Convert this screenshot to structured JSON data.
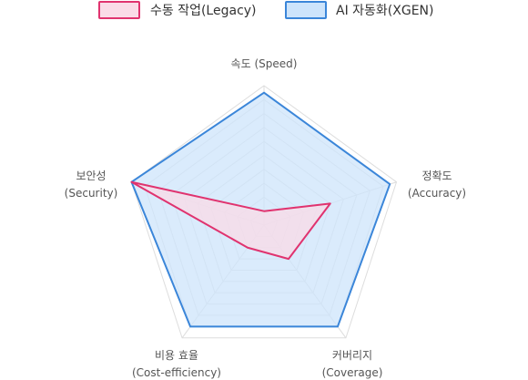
{
  "chart_data": {
    "type": "radar",
    "axes": [
      {
        "label": [
          "속도 (Speed)"
        ]
      },
      {
        "label": [
          "정확도",
          "(Accuracy)"
        ]
      },
      {
        "label": [
          "커버리지",
          "(Coverage)"
        ]
      },
      {
        "label": [
          "비용 효율",
          "(Cost-efficiency)"
        ]
      },
      {
        "label": [
          "보안성",
          "(Security)"
        ]
      }
    ],
    "range": [
      0,
      100
    ],
    "grid_levels": 10,
    "series": [
      {
        "name": "수동 작업(Legacy)",
        "values": [
          10,
          50,
          30,
          20,
          100
        ],
        "stroke": "#e0336f",
        "fill": "#fadbe7"
      },
      {
        "name": "AI 자동화(XGEN)",
        "values": [
          95,
          95,
          90,
          90,
          100
        ],
        "stroke": "#3b86d9",
        "fill": "#cde4fb"
      }
    ],
    "legend": "top"
  }
}
